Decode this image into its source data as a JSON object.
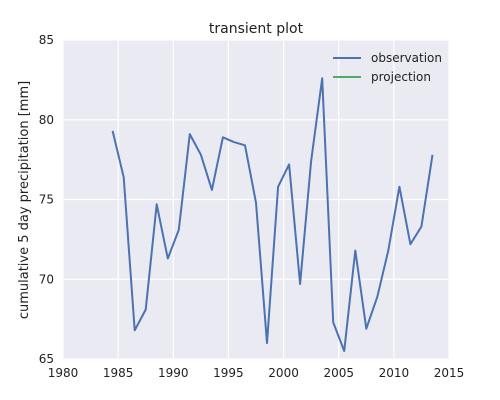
{
  "chart_data": {
    "type": "line",
    "title": "transient plot",
    "xlabel": "",
    "ylabel": "cumulative 5 day precipitation [mm]",
    "xlim": [
      1980,
      2015
    ],
    "ylim": [
      65,
      85
    ],
    "xticks": [
      1980,
      1985,
      1990,
      1995,
      2000,
      2005,
      2010,
      2015
    ],
    "yticks": [
      65,
      70,
      75,
      80,
      85
    ],
    "grid": true,
    "legend_position": "top-right",
    "series": [
      {
        "name": "observation",
        "color": "#4c72b0",
        "x": [
          1984.5,
          1985.5,
          1986.5,
          1987.5,
          1988.5,
          1989.5,
          1990.5,
          1991.5,
          1992.5,
          1993.5,
          1994.5,
          1995.5,
          1996.5,
          1997.5,
          1998.5,
          1999.5,
          2000.5,
          2001.5,
          2002.5,
          2003.5,
          2004.5,
          2005.5,
          2006.5,
          2007.5,
          2008.5,
          2009.5,
          2010.5,
          2011.5,
          2012.5,
          2013.5
        ],
        "y": [
          79.3,
          76.4,
          66.8,
          68.1,
          74.7,
          71.3,
          73.1,
          79.1,
          77.8,
          75.6,
          78.9,
          78.6,
          78.4,
          74.8,
          66.0,
          75.8,
          77.2,
          69.7,
          77.4,
          82.6,
          67.3,
          65.5,
          71.8,
          66.9,
          68.9,
          71.8,
          75.8,
          72.2,
          73.3,
          77.8
        ]
      },
      {
        "name": "projection",
        "color": "#55a868",
        "x": [],
        "y": []
      }
    ]
  }
}
